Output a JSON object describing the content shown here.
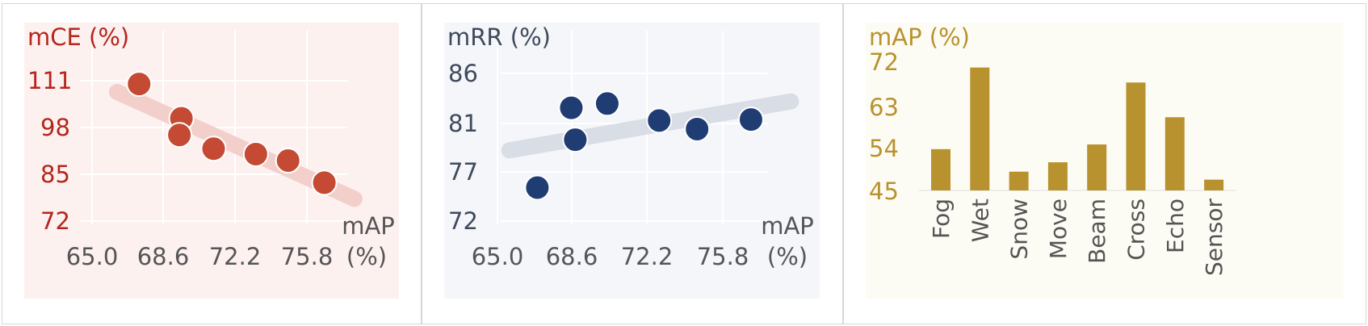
{
  "colors": {
    "mce": "#b5261c",
    "mce_point": "#c44a33",
    "mce_trend": "#f3cfcb",
    "mce_bg": "#fdf1f0",
    "mrr_text": "#3f4a5c",
    "mrr_point": "#1f3d72",
    "mrr_trend": "#d9dde6",
    "mrr_bg": "#f4f6fa",
    "map": "#b8922f",
    "map_bg": "#fdfcf4",
    "axis_text": "#555555"
  },
  "chart_data": [
    {
      "type": "scatter",
      "title": "mCE (%)",
      "xlabel_line1": "mAP",
      "xlabel_line2": "(%)",
      "xlim": [
        64.6,
        78.2
      ],
      "ylim": [
        72,
        114
      ],
      "xticks": [
        "65.0",
        "68.6",
        "72.2",
        "75.8"
      ],
      "yticks": [
        "111",
        "98",
        "85",
        "72"
      ],
      "points": [
        {
          "x": 67.5,
          "y": 110.4
        },
        {
          "x": 69.6,
          "y": 100.9
        },
        {
          "x": 69.5,
          "y": 96.3
        },
        {
          "x": 71.2,
          "y": 92.5
        },
        {
          "x": 73.3,
          "y": 91.0
        },
        {
          "x": 74.9,
          "y": 89.2
        },
        {
          "x": 76.7,
          "y": 83.1
        }
      ],
      "trend": [
        [
          66.4,
          108.2
        ],
        [
          78.2,
          78.6
        ]
      ]
    },
    {
      "type": "scatter",
      "title": "mRR (%)",
      "xlabel_line1": "mAP",
      "xlabel_line2": "(%)",
      "xlim": [
        64.6,
        79.2
      ],
      "ylim": [
        72,
        88
      ],
      "xticks": [
        "65.0",
        "68.6",
        "72.2",
        "75.8"
      ],
      "yticks": [
        "86",
        "81",
        "77",
        "72"
      ],
      "points": [
        {
          "x": 66.8,
          "y": 75.3
        },
        {
          "x": 68.5,
          "y": 82.8
        },
        {
          "x": 68.7,
          "y": 79.8
        },
        {
          "x": 70.3,
          "y": 83.2
        },
        {
          "x": 72.9,
          "y": 81.6
        },
        {
          "x": 74.8,
          "y": 80.8
        },
        {
          "x": 77.5,
          "y": 81.7
        }
      ],
      "trend": [
        [
          65.4,
          78.8
        ],
        [
          79.5,
          83.4
        ]
      ]
    },
    {
      "type": "bar",
      "title": "mAP (%)",
      "categories": [
        "Fog",
        "Wet",
        "Snow",
        "Move",
        "Beam",
        "Cross",
        "Echo",
        "Sensor"
      ],
      "values": [
        53.8,
        71.2,
        49.0,
        51.0,
        54.8,
        68.0,
        60.6,
        47.3
      ],
      "yticks": [
        "72",
        "63",
        "54",
        "45"
      ],
      "ylim": [
        45,
        72
      ]
    }
  ]
}
